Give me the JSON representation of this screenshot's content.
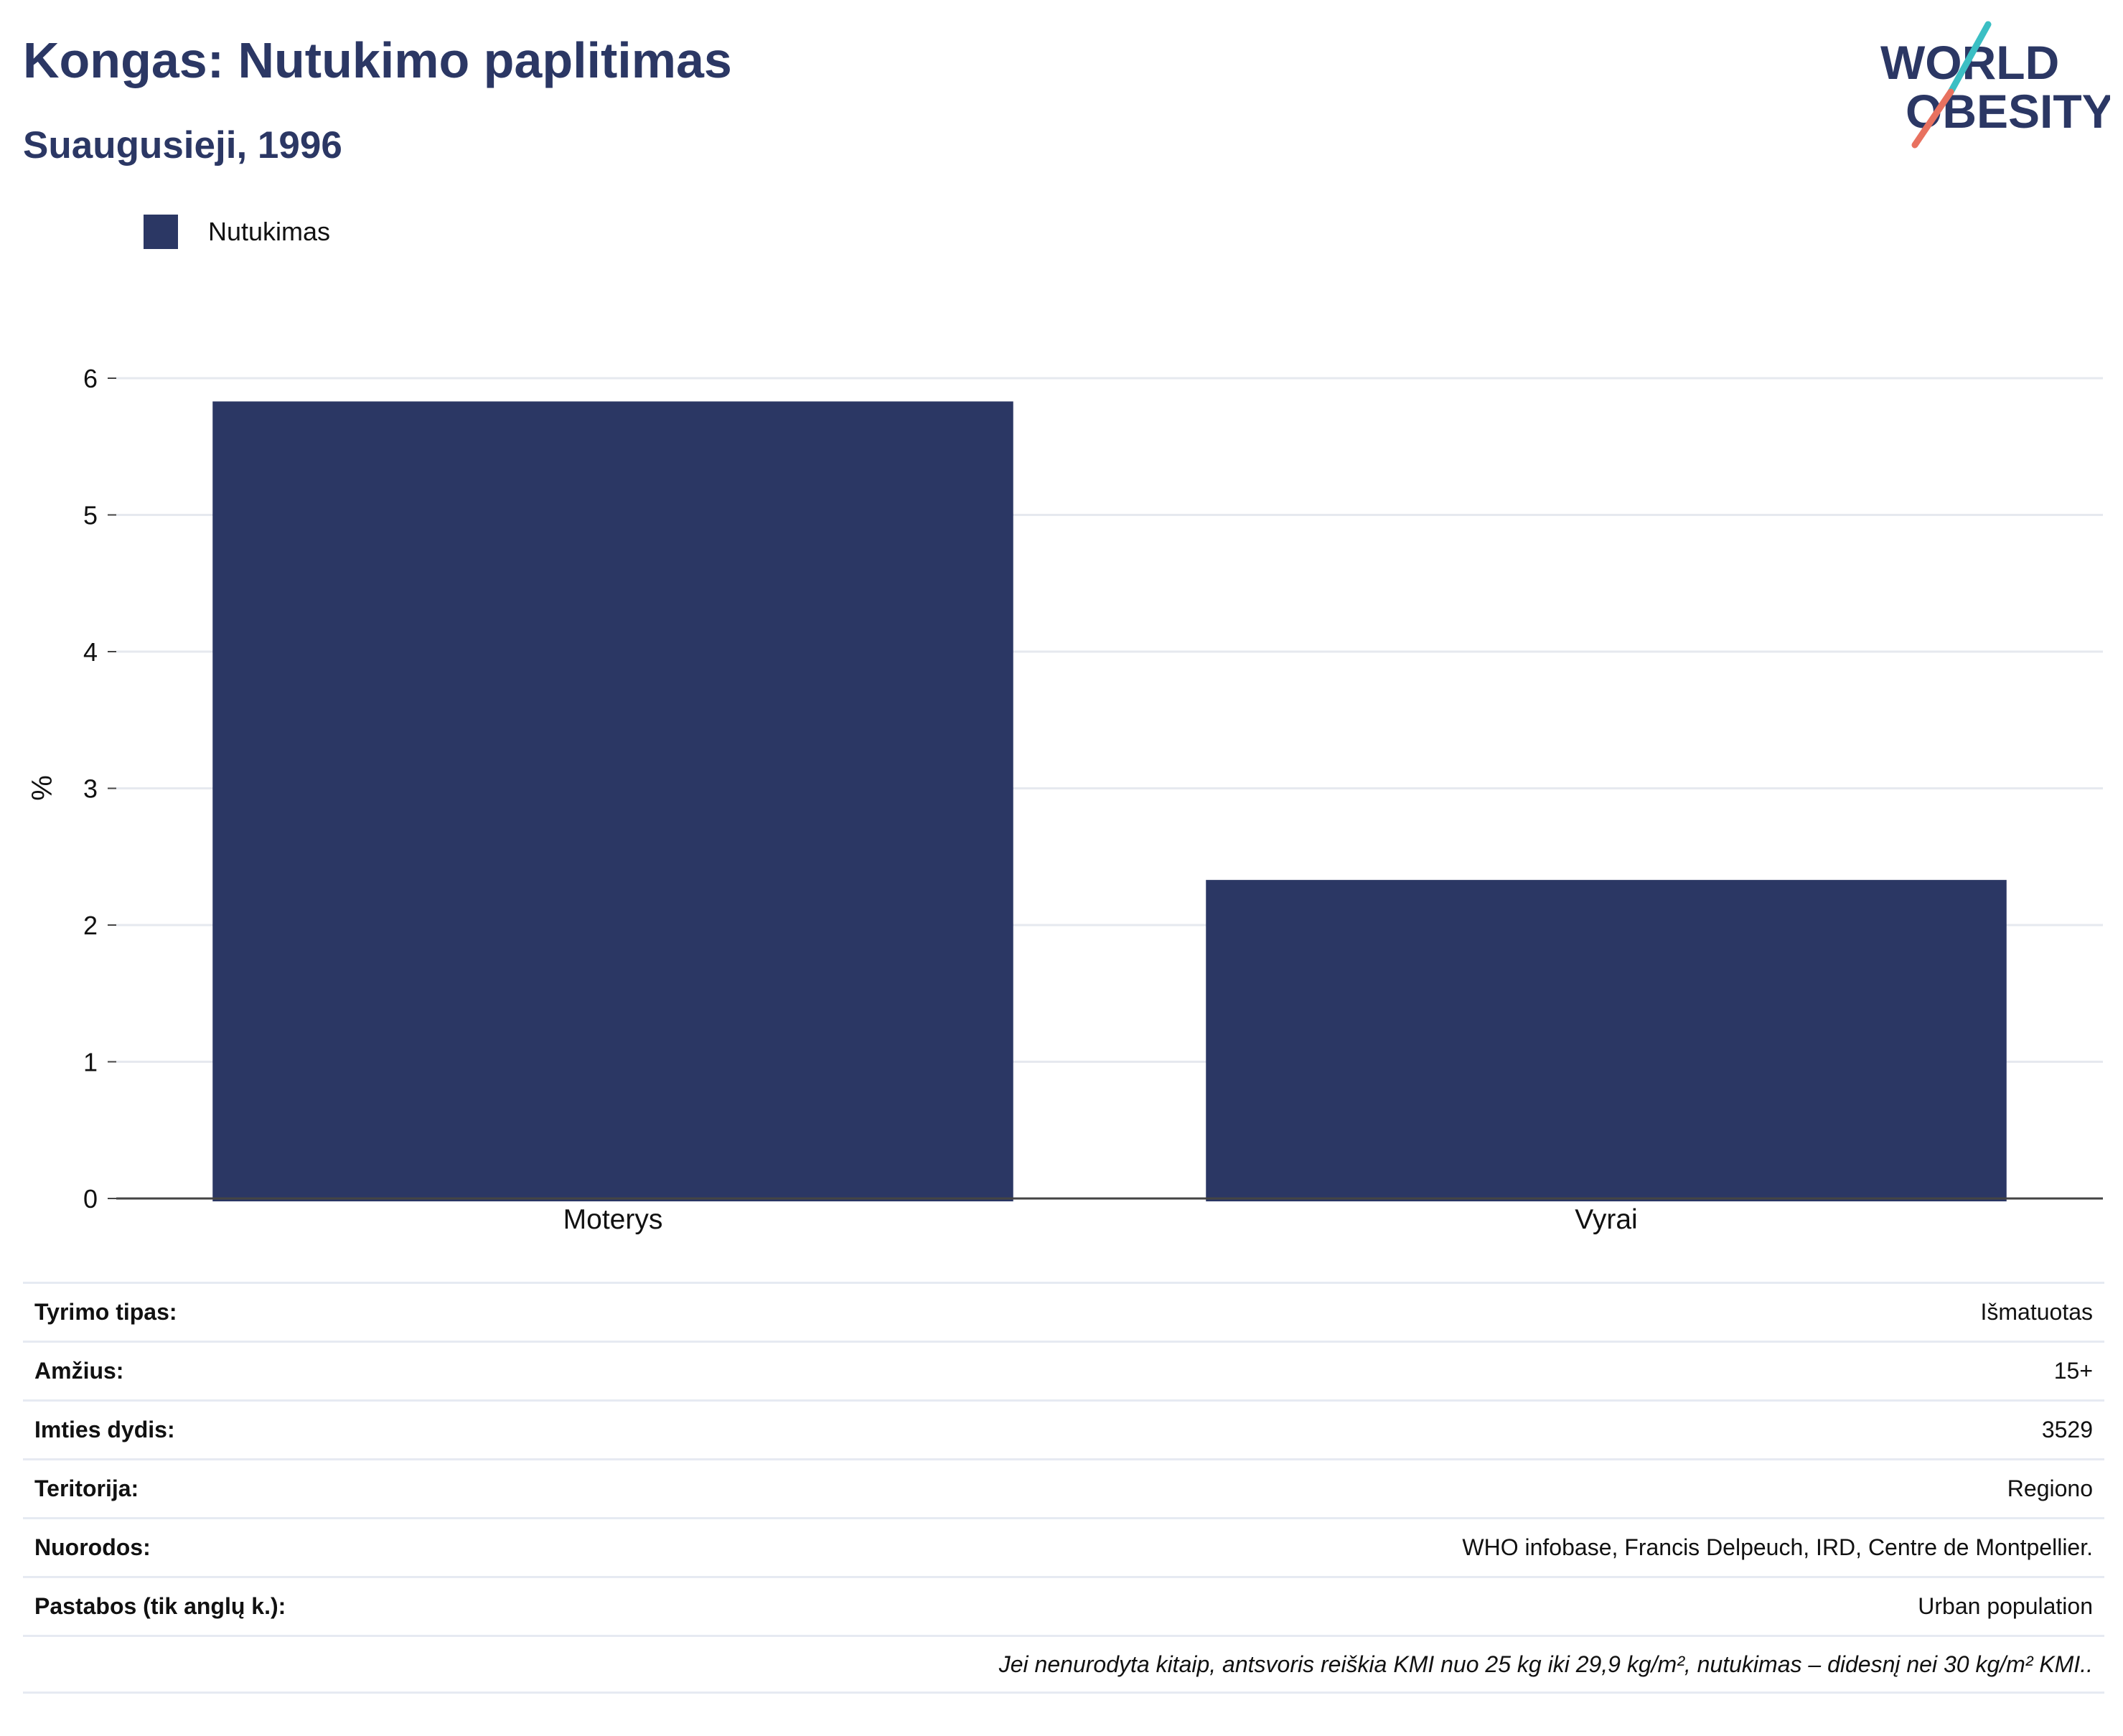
{
  "header": {
    "title": "Kongas: Nutukimo paplitimas",
    "subtitle": "Suaugusieji, 1996",
    "logo_line1": "WORLD",
    "logo_line2": "OBESITY"
  },
  "colors": {
    "bar": "#2b3764",
    "title": "#2b3764",
    "grid": "#e6e9ef",
    "logo_teal": "#3bbfc4",
    "logo_coral": "#e8715f"
  },
  "chart_data": {
    "type": "bar",
    "categories": [
      "Moterys",
      "Vyrai"
    ],
    "series": [
      {
        "name": "Nutukimas",
        "values": [
          5.83,
          2.33
        ]
      }
    ],
    "title": "Kongas: Nutukimo paplitimas",
    "subtitle": "Suaugusieji, 1996",
    "xlabel": "",
    "ylabel": "%",
    "ylim": [
      0,
      6
    ],
    "yticks": [
      0,
      1,
      2,
      3,
      4,
      5,
      6
    ],
    "grid": true,
    "legend_position": "top-left"
  },
  "info": {
    "rows": [
      {
        "label": "Tyrimo tipas:",
        "value": "Išmatuotas"
      },
      {
        "label": "Amžius:",
        "value": "15+"
      },
      {
        "label": "Imties dydis:",
        "value": "3529"
      },
      {
        "label": "Teritorija:",
        "value": "Regiono"
      },
      {
        "label": "Nuorodos:",
        "value": "WHO infobase, Francis Delpeuch, IRD, Centre de Montpellier."
      },
      {
        "label": "Pastabos (tik anglų k.):",
        "value": "Urban population"
      }
    ],
    "footnote": "Jei nenurodyta kitaip, antsvoris reiškia KMI nuo 25 kg iki 29,9 kg/m², nutukimas – didesnį nei 30 kg/m² KMI.."
  }
}
